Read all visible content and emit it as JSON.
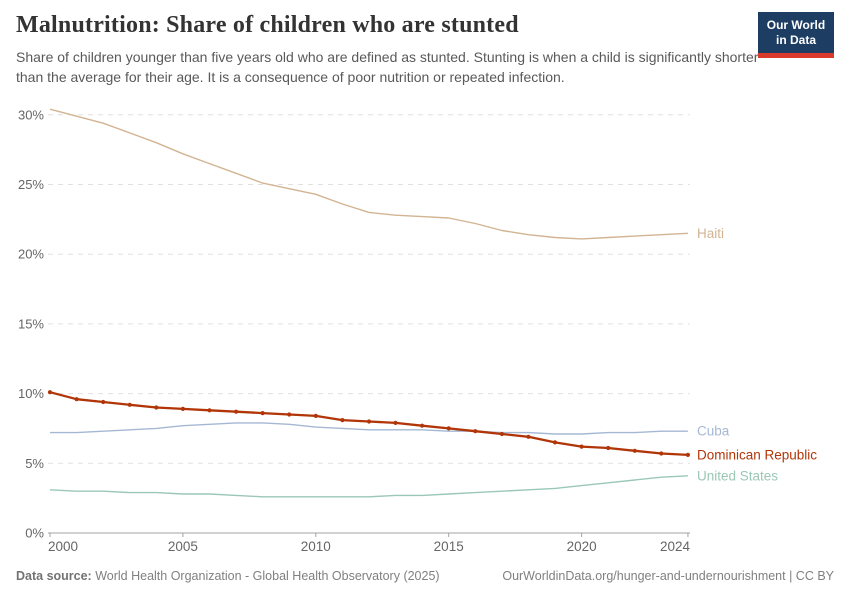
{
  "header": {
    "title": "Malnutrition: Share of children who are stunted",
    "subtitle": "Share of children younger than five years old who are defined as stunted. Stunting is when a child is significantly shorter than the average for their age. It is a consequence of poor nutrition or repeated infection.",
    "logo": {
      "line1": "Our World",
      "line2": "in Data"
    }
  },
  "footer": {
    "source_label": "Data source:",
    "source_text": " World Health Organization - Global Health Observatory (2025)",
    "link_text": "OurWorldinData.org/hunger-and-undernourishment | CC BY"
  },
  "chart_data": {
    "type": "line",
    "title": "Malnutrition: Share of children who are stunted",
    "xlabel": "",
    "ylabel": "",
    "ylim": [
      0,
      30.5
    ],
    "grid": "horizontal-dashed",
    "legend_position": "right-end-labels",
    "x": [
      2000,
      2001,
      2002,
      2003,
      2004,
      2005,
      2006,
      2007,
      2008,
      2009,
      2010,
      2011,
      2012,
      2013,
      2014,
      2015,
      2016,
      2017,
      2018,
      2019,
      2020,
      2021,
      2022,
      2023,
      2024
    ],
    "x_tick_labels": [
      "2000",
      "2005",
      "2010",
      "2015",
      "2020",
      "2024"
    ],
    "x_tick_values": [
      2000,
      2005,
      2010,
      2015,
      2020,
      2024
    ],
    "y_tick_labels": [
      "0%",
      "5%",
      "10%",
      "15%",
      "20%",
      "25%",
      "30%"
    ],
    "y_tick_values": [
      0,
      5,
      10,
      15,
      20,
      25,
      30
    ],
    "grid_color": "#e0e0e0",
    "axis_color": "#a3a3a3",
    "tick_label_color": "#666666",
    "series": [
      {
        "name": "Haiti",
        "color": "#d2b492",
        "markers": false,
        "values": [
          30.4,
          29.9,
          29.4,
          28.7,
          28.0,
          27.2,
          26.5,
          25.8,
          25.1,
          24.7,
          24.3,
          23.6,
          23.0,
          22.8,
          22.7,
          22.6,
          22.2,
          21.7,
          21.4,
          21.2,
          21.1,
          21.2,
          21.3,
          21.4,
          21.5
        ]
      },
      {
        "name": "Cuba",
        "color": "#a5b8d3",
        "markers": false,
        "values": [
          7.2,
          7.2,
          7.3,
          7.4,
          7.5,
          7.7,
          7.8,
          7.9,
          7.9,
          7.8,
          7.6,
          7.5,
          7.4,
          7.4,
          7.4,
          7.3,
          7.3,
          7.2,
          7.2,
          7.1,
          7.1,
          7.2,
          7.2,
          7.3,
          7.3
        ]
      },
      {
        "name": "United States",
        "color": "#9bc7b6",
        "markers": false,
        "values": [
          3.1,
          3.0,
          3.0,
          2.9,
          2.9,
          2.8,
          2.8,
          2.7,
          2.6,
          2.6,
          2.6,
          2.6,
          2.6,
          2.7,
          2.7,
          2.8,
          2.9,
          3.0,
          3.1,
          3.2,
          3.4,
          3.6,
          3.8,
          4.0,
          4.1
        ]
      },
      {
        "name": "Dominican Republic",
        "color": "#b13507",
        "markers": true,
        "values": [
          10.1,
          9.6,
          9.4,
          9.2,
          9.0,
          8.9,
          8.8,
          8.7,
          8.6,
          8.5,
          8.4,
          8.1,
          8.0,
          7.9,
          7.7,
          7.5,
          7.3,
          7.1,
          6.9,
          6.5,
          6.2,
          6.1,
          5.9,
          5.7,
          5.6
        ]
      }
    ]
  }
}
